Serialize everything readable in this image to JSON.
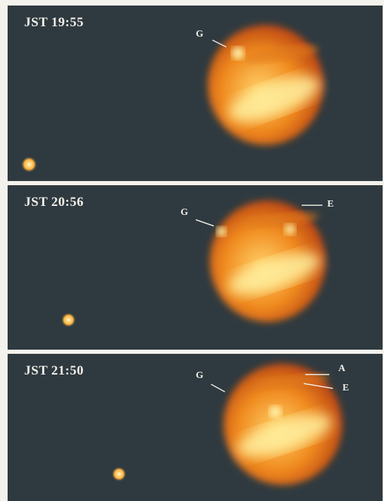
{
  "panels": [
    {
      "time": "JST 19:55",
      "labels": {
        "g": "G"
      }
    },
    {
      "time": "JST 20:56",
      "labels": {
        "g": "G",
        "e": "E"
      }
    },
    {
      "time": "JST 21:50",
      "labels": {
        "g": "G",
        "a": "A",
        "e": "E"
      }
    }
  ],
  "colors": {
    "sky": "#2f3a40",
    "planet_core": "#fff1a0",
    "planet_mid": "#f08a1e",
    "planet_edge": "#b23a12",
    "text": "#f2efe8"
  }
}
